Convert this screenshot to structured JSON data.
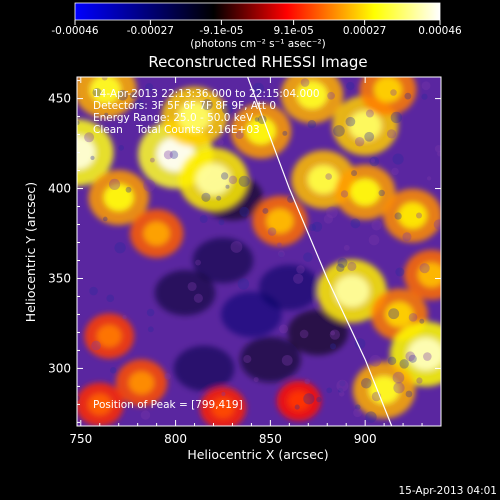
{
  "colorbar": {
    "tick_labels": [
      "-0.00046",
      "-0.00027",
      "-9.1e-05",
      "9.1e-05",
      "0.00027",
      "0.00046"
    ],
    "tick_values": [
      -0.00046,
      -0.00027,
      -9.1e-05,
      9.1e-05,
      0.00027,
      0.00046
    ],
    "range": [
      -0.00046,
      0.00046
    ],
    "units": "(photons cm⁻² s⁻¹ asec⁻²)",
    "colormap": [
      "#0000ff",
      "#000000",
      "#ff0000",
      "#ffff00",
      "#ffffff"
    ]
  },
  "chart_data": {
    "type": "heatmap",
    "title": "Reconstructed RHESSI Image",
    "xlabel": "Heliocentric X (arcsec)",
    "ylabel": "Heliocentric Y (arcsec)",
    "xlim": [
      748,
      940
    ],
    "ylim": [
      268,
      462
    ],
    "x_ticks": [
      750,
      800,
      850,
      900
    ],
    "y_ticks": [
      300,
      350,
      400,
      450
    ],
    "annotations": [
      "14-Apr-2013 22:13:36.000 to 22:15:04.000",
      "Detectors: 3F 5F 6F 7F 8F 9F, Att 0",
      "Energy Range: 25.0 - 50.0 keV",
      "Clean    Total Counts: 2.16E+03"
    ],
    "peak_label": "Position of Peak = [799,419]",
    "peak_position": [
      799,
      419
    ],
    "limb_curve": [
      [
        838,
        462
      ],
      [
        860,
        400
      ],
      [
        880,
        350
      ],
      [
        900,
        305
      ],
      [
        914,
        268
      ]
    ],
    "bright_regions": [
      {
        "x": 748,
        "y": 420,
        "value": 0.00044
      },
      {
        "x": 800,
        "y": 419,
        "value": 0.00046
      },
      {
        "x": 820,
        "y": 405,
        "value": 0.0004
      },
      {
        "x": 810,
        "y": 440,
        "value": 0.00036
      },
      {
        "x": 770,
        "y": 395,
        "value": 0.0003
      },
      {
        "x": 763,
        "y": 455,
        "value": 0.00032
      },
      {
        "x": 790,
        "y": 375,
        "value": 0.00022
      },
      {
        "x": 845,
        "y": 432,
        "value": 0.0003
      },
      {
        "x": 872,
        "y": 452,
        "value": 0.00032
      },
      {
        "x": 900,
        "y": 435,
        "value": 0.00036
      },
      {
        "x": 912,
        "y": 455,
        "value": 0.00026
      },
      {
        "x": 878,
        "y": 405,
        "value": 0.00034
      },
      {
        "x": 900,
        "y": 398,
        "value": 0.0003
      },
      {
        "x": 855,
        "y": 382,
        "value": 0.00024
      },
      {
        "x": 925,
        "y": 385,
        "value": 0.00028
      },
      {
        "x": 893,
        "y": 343,
        "value": 0.0004
      },
      {
        "x": 918,
        "y": 330,
        "value": 0.00026
      },
      {
        "x": 932,
        "y": 308,
        "value": 0.00042
      },
      {
        "x": 910,
        "y": 288,
        "value": 0.00032
      },
      {
        "x": 935,
        "y": 352,
        "value": 0.00024
      },
      {
        "x": 765,
        "y": 318,
        "value": 0.00018
      },
      {
        "x": 782,
        "y": 292,
        "value": 0.0002
      },
      {
        "x": 825,
        "y": 278,
        "value": 0.00014
      },
      {
        "x": 865,
        "y": 282,
        "value": 0.00012
      },
      {
        "x": 760,
        "y": 280,
        "value": 0.00016
      }
    ],
    "dim_regions": [
      {
        "x": 840,
        "y": 330,
        "value": -0.00026
      },
      {
        "x": 815,
        "y": 300,
        "value": -0.0002
      },
      {
        "x": 860,
        "y": 345,
        "value": -0.00024
      },
      {
        "x": 825,
        "y": 360,
        "value": -0.00018
      },
      {
        "x": 805,
        "y": 342,
        "value": -0.00016
      },
      {
        "x": 850,
        "y": 305,
        "value": -0.00014
      },
      {
        "x": 830,
        "y": 395,
        "value": -0.00012
      },
      {
        "x": 875,
        "y": 320,
        "value": -0.00012
      }
    ]
  },
  "footer": {
    "timestamp": "15-Apr-2013 04:01"
  }
}
